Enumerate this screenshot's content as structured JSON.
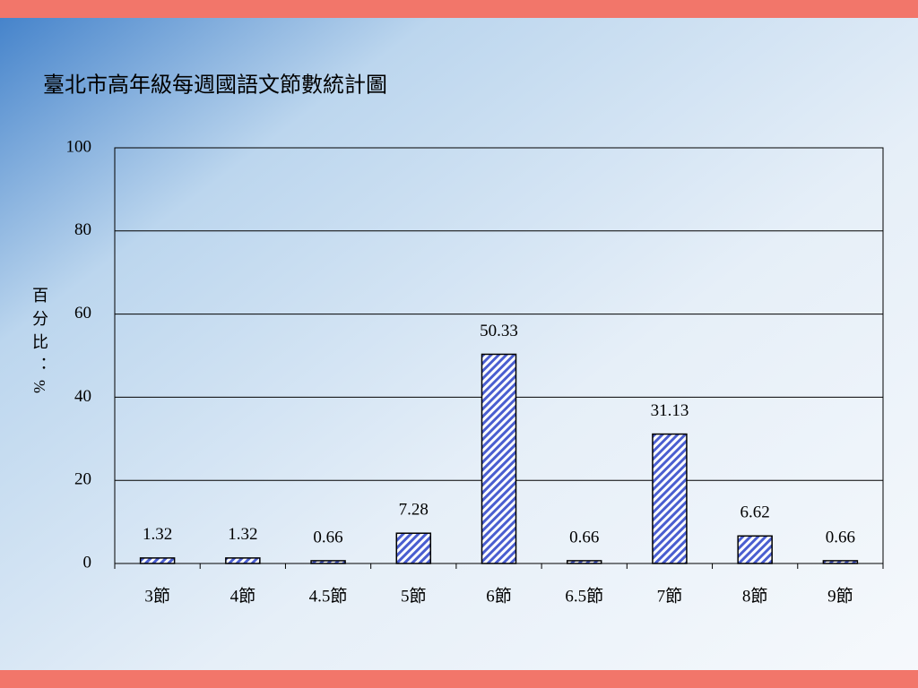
{
  "chart_data": {
    "type": "bar",
    "title": "臺北市高年級每週國語文節數統計圖",
    "y_label": "百分比：%",
    "categories": [
      "3節",
      "4節",
      "4.5節",
      "5節",
      "6節",
      "6.5節",
      "7節",
      "8節",
      "9節"
    ],
    "values": [
      1.32,
      1.32,
      0.66,
      7.28,
      50.33,
      0.66,
      31.13,
      6.62,
      0.66
    ],
    "color": "#4a5ed0",
    "ylim": [
      0,
      100
    ],
    "yticks": [
      0,
      20,
      40,
      60,
      80,
      100
    ],
    "grid": true
  }
}
